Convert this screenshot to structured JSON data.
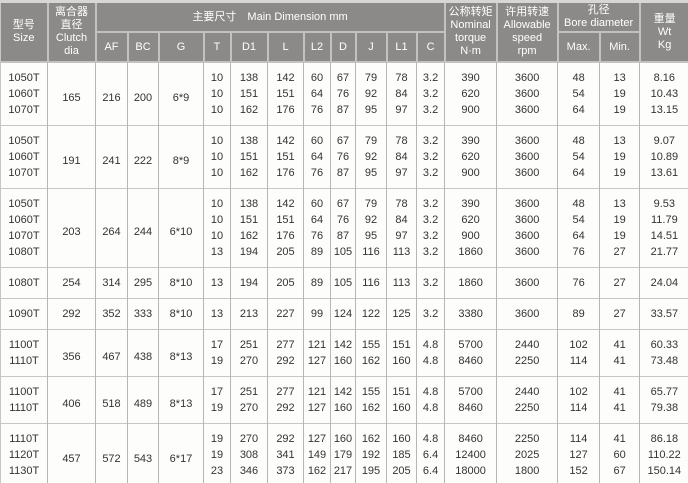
{
  "colors": {
    "header_bg": "#8b8a88",
    "header_text": "#ffffff",
    "body_text": "#333333",
    "grid_line": "#b6b6b4",
    "group_separator": "#c6c6c4"
  },
  "header": {
    "size": "型号\nSize",
    "clutch": "离合器\n直径\nClutch\ndia",
    "main_dimension": "主要尺寸　Main Dimension mm",
    "dim_cols": [
      "AF",
      "BC",
      "G",
      "T",
      "D1",
      "L",
      "L2",
      "D",
      "J",
      "L1",
      "C"
    ],
    "torque": "公称转矩\nNominal\ntorque\nN·m",
    "speed": "许用转速\nAllowable\nspeed\nrpm",
    "bore": "孔径\nBore diameter",
    "bore_max": "Max.",
    "bore_min": "Min.",
    "weight": "重量\nWt\nKg"
  },
  "groups": [
    {
      "clutch_dia": "165",
      "af": "216",
      "bc": "200",
      "g": "6*9",
      "rows": [
        {
          "size": "1050T",
          "values": [
            "10",
            "138",
            "142",
            "60",
            "67",
            "79",
            "78",
            "3.2",
            "390",
            "3600",
            "48",
            "13",
            "8.16"
          ]
        },
        {
          "size": "1060T",
          "values": [
            "10",
            "151",
            "151",
            "64",
            "76",
            "92",
            "84",
            "3.2",
            "620",
            "3600",
            "54",
            "19",
            "10.43"
          ]
        },
        {
          "size": "1070T",
          "values": [
            "10",
            "162",
            "176",
            "76",
            "87",
            "95",
            "97",
            "3.2",
            "900",
            "3600",
            "64",
            "19",
            "13.15"
          ]
        }
      ]
    },
    {
      "clutch_dia": "191",
      "af": "241",
      "bc": "222",
      "g": "8*9",
      "rows": [
        {
          "size": "1050T",
          "values": [
            "10",
            "138",
            "142",
            "60",
            "67",
            "79",
            "78",
            "3.2",
            "390",
            "3600",
            "48",
            "13",
            "9.07"
          ]
        },
        {
          "size": "1060T",
          "values": [
            "10",
            "151",
            "151",
            "64",
            "76",
            "92",
            "84",
            "3.2",
            "620",
            "3600",
            "54",
            "19",
            "10.89"
          ]
        },
        {
          "size": "1070T",
          "values": [
            "10",
            "162",
            "176",
            "76",
            "87",
            "95",
            "97",
            "3.2",
            "900",
            "3600",
            "64",
            "19",
            "13.61"
          ]
        }
      ]
    },
    {
      "clutch_dia": "203",
      "af": "264",
      "bc": "244",
      "g": "6*10",
      "rows": [
        {
          "size": "1050T",
          "values": [
            "10",
            "138",
            "142",
            "60",
            "67",
            "79",
            "78",
            "3.2",
            "390",
            "3600",
            "48",
            "13",
            "9.53"
          ]
        },
        {
          "size": "1060T",
          "values": [
            "10",
            "151",
            "151",
            "64",
            "76",
            "92",
            "84",
            "3.2",
            "620",
            "3600",
            "54",
            "19",
            "11.79"
          ]
        },
        {
          "size": "1070T",
          "values": [
            "10",
            "162",
            "176",
            "76",
            "87",
            "95",
            "97",
            "3.2",
            "900",
            "3600",
            "64",
            "19",
            "14.51"
          ]
        },
        {
          "size": "1080T",
          "values": [
            "13",
            "194",
            "205",
            "89",
            "105",
            "116",
            "113",
            "3.2",
            "1860",
            "3600",
            "76",
            "27",
            "21.77"
          ]
        }
      ]
    },
    {
      "clutch_dia": "254",
      "af": "314",
      "bc": "295",
      "g": "8*10",
      "rows": [
        {
          "size": "1080T",
          "values": [
            "13",
            "194",
            "205",
            "89",
            "105",
            "116",
            "113",
            "3.2",
            "1860",
            "3600",
            "76",
            "27",
            "24.04"
          ]
        }
      ]
    },
    {
      "clutch_dia": "292",
      "af": "352",
      "bc": "333",
      "g": "8*10",
      "rows": [
        {
          "size": "1090T",
          "values": [
            "13",
            "213",
            "227",
            "99",
            "124",
            "122",
            "125",
            "3.2",
            "3380",
            "3600",
            "89",
            "27",
            "33.57"
          ]
        }
      ]
    },
    {
      "clutch_dia": "356",
      "af": "467",
      "bc": "438",
      "g": "8*13",
      "rows": [
        {
          "size": "1100T",
          "values": [
            "17",
            "251",
            "277",
            "121",
            "142",
            "155",
            "151",
            "4.8",
            "5700",
            "2440",
            "102",
            "41",
            "60.33"
          ]
        },
        {
          "size": "1110T",
          "values": [
            "19",
            "270",
            "292",
            "127",
            "160",
            "162",
            "160",
            "4.8",
            "8460",
            "2250",
            "114",
            "41",
            "73.48"
          ]
        }
      ]
    },
    {
      "clutch_dia": "406",
      "af": "518",
      "bc": "489",
      "g": "8*13",
      "rows": [
        {
          "size": "1100T",
          "values": [
            "17",
            "251",
            "277",
            "121",
            "142",
            "155",
            "151",
            "4.8",
            "5700",
            "2440",
            "102",
            "41",
            "65.77"
          ]
        },
        {
          "size": "1110T",
          "values": [
            "19",
            "270",
            "292",
            "127",
            "160",
            "162",
            "160",
            "4.8",
            "8460",
            "2250",
            "114",
            "41",
            "79.38"
          ]
        }
      ]
    },
    {
      "clutch_dia": "457",
      "af": "572",
      "bc": "543",
      "g": "6*17",
      "rows": [
        {
          "size": "1110T",
          "values": [
            "19",
            "270",
            "292",
            "127",
            "160",
            "162",
            "160",
            "4.8",
            "8460",
            "2250",
            "114",
            "41",
            "86.18"
          ]
        },
        {
          "size": "1120T",
          "values": [
            "19",
            "308",
            "341",
            "149",
            "179",
            "192",
            "185",
            "6.4",
            "12400",
            "2025",
            "127",
            "60",
            "110.22"
          ]
        },
        {
          "size": "1130T",
          "values": [
            "23",
            "346",
            "373",
            "162",
            "217",
            "195",
            "205",
            "6.4",
            "18000",
            "1800",
            "152",
            "67",
            "150.14"
          ]
        }
      ]
    }
  ]
}
